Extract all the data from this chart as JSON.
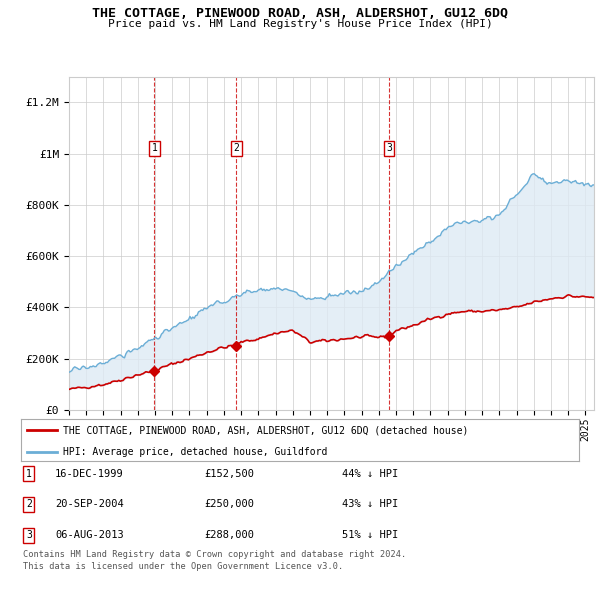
{
  "title": "THE COTTAGE, PINEWOOD ROAD, ASH, ALDERSHOT, GU12 6DQ",
  "subtitle": "Price paid vs. HM Land Registry's House Price Index (HPI)",
  "ylabel_ticks": [
    "£0",
    "£200K",
    "£400K",
    "£600K",
    "£800K",
    "£1M",
    "£1.2M"
  ],
  "ytick_values": [
    0,
    200000,
    400000,
    600000,
    800000,
    1000000,
    1200000
  ],
  "ylim": [
    0,
    1300000
  ],
  "xlim_start": 1995.0,
  "xlim_end": 2025.5,
  "sale_dates": [
    1999.96,
    2004.72,
    2013.59
  ],
  "sale_prices": [
    152500,
    250000,
    288000
  ],
  "sale_labels": [
    "1",
    "2",
    "3"
  ],
  "sale_info": [
    {
      "num": "1",
      "date": "16-DEC-1999",
      "price": "£152,500",
      "pct": "44% ↓ HPI"
    },
    {
      "num": "2",
      "date": "20-SEP-2004",
      "price": "£250,000",
      "pct": "43% ↓ HPI"
    },
    {
      "num": "3",
      "date": "06-AUG-2013",
      "price": "£288,000",
      "pct": "51% ↓ HPI"
    }
  ],
  "legend_line1": "THE COTTAGE, PINEWOOD ROAD, ASH, ALDERSHOT, GU12 6DQ (detached house)",
  "legend_line2": "HPI: Average price, detached house, Guildford",
  "footer1": "Contains HM Land Registry data © Crown copyright and database right 2024.",
  "footer2": "This data is licensed under the Open Government Licence v3.0.",
  "hpi_color": "#6baed6",
  "hpi_fill_color": "#deeaf4",
  "price_color": "#cc0000",
  "vline_color": "#cc0000",
  "background_color": "#ffffff",
  "grid_color": "#cccccc",
  "hpi_control_years": [
    1995,
    1996,
    1997,
    1998,
    1999,
    2000,
    2001,
    2002,
    2003,
    2004,
    2005,
    2006,
    2007,
    2008,
    2009,
    2010,
    2011,
    2012,
    2013,
    2014,
    2015,
    2016,
    2017,
    2018,
    2019,
    2020,
    2021,
    2022,
    2023,
    2024,
    2025
  ],
  "hpi_control_prices": [
    152000,
    165000,
    185000,
    210000,
    240000,
    285000,
    315000,
    355000,
    395000,
    425000,
    450000,
    470000,
    475000,
    460000,
    430000,
    445000,
    455000,
    460000,
    500000,
    560000,
    610000,
    660000,
    710000,
    740000,
    745000,
    760000,
    840000,
    920000,
    880000,
    900000,
    880000
  ],
  "price_control_years": [
    1995,
    1996,
    1997,
    1998,
    1999,
    1999.96,
    2001,
    2002,
    2003,
    2004,
    2004.72,
    2005,
    2006,
    2007,
    2008,
    2009,
    2010,
    2011,
    2012,
    2013,
    2013.59,
    2014,
    2015,
    2016,
    2017,
    2018,
    2019,
    2020,
    2021,
    2022,
    2023,
    2024,
    2025
  ],
  "price_control_prices": [
    80000,
    90000,
    100000,
    118000,
    138000,
    152500,
    180000,
    200000,
    225000,
    245000,
    250000,
    265000,
    278000,
    300000,
    310000,
    265000,
    270000,
    278000,
    285000,
    285000,
    288000,
    310000,
    330000,
    355000,
    375000,
    385000,
    385000,
    390000,
    400000,
    420000,
    435000,
    445000,
    440000
  ]
}
